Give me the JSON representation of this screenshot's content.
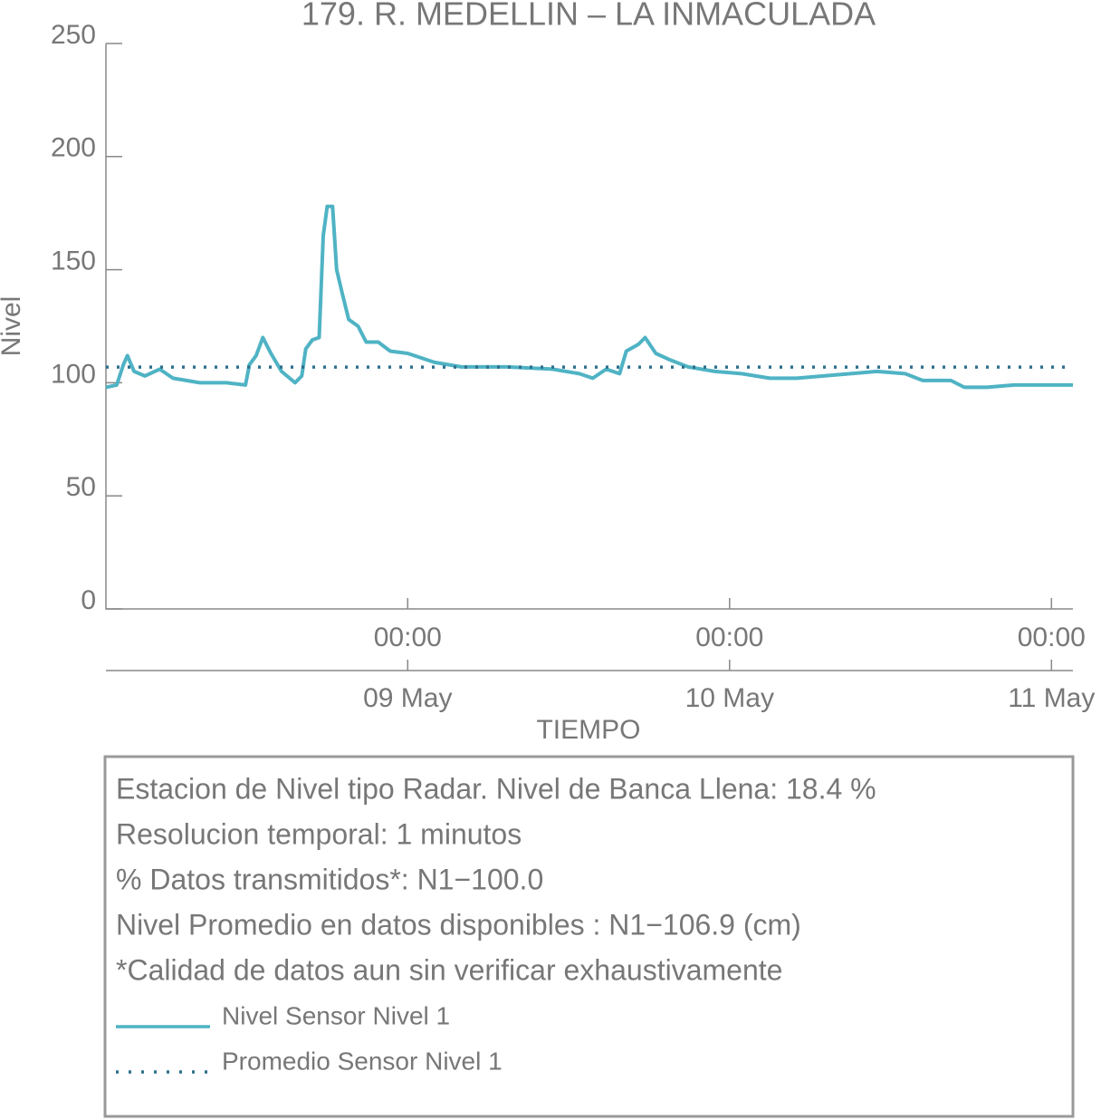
{
  "chart_data": {
    "type": "line",
    "title": "179. R. MEDELLIN – LA INMACULADA",
    "xlabel": "TIEMPO",
    "ylabel": "Nivel",
    "ylim": [
      0,
      250
    ],
    "yticks": [
      0,
      50,
      100,
      150,
      200,
      250
    ],
    "xlim": [
      "08 May 01:30",
      "11 May 01:36"
    ],
    "xticks": [
      {
        "value": "09 May 00:00",
        "label": "00:00"
      },
      {
        "value": "10 May 00:00",
        "label": "00:00"
      },
      {
        "value": "11 May 00:00",
        "label": "00:00"
      }
    ],
    "x_date_labels": [
      "09 May",
      "10 May",
      "11 May"
    ],
    "series": [
      {
        "name": "Nivel Sensor Nivel 1",
        "color": "#4fb3c4",
        "x": [
          "08 May 01:30",
          "08 May 02:18",
          "08 May 02:48",
          "08 May 03:06",
          "08 May 03:36",
          "08 May 04:24",
          "08 May 05:30",
          "08 May 06:30",
          "08 May 08:30",
          "08 May 10:30",
          "08 May 11:54",
          "08 May 12:12",
          "08 May 12:42",
          "08 May 13:12",
          "08 May 13:48",
          "08 May 14:36",
          "08 May 15:36",
          "08 May 16:06",
          "08 May 16:24",
          "08 May 16:54",
          "08 May 17:24",
          "08 May 17:42",
          "08 May 18:00",
          "08 May 18:24",
          "08 May 18:42",
          "08 May 19:06",
          "08 May 19:36",
          "08 May 20:18",
          "08 May 20:54",
          "08 May 21:48",
          "08 May 22:42",
          "09 May 00:00",
          "09 May 02:00",
          "09 May 04:00",
          "09 May 07:24",
          "09 May 10:48",
          "09 May 12:48",
          "09 May 13:48",
          "09 May 14:48",
          "09 May 15:48",
          "09 May 16:18",
          "09 May 17:12",
          "09 May 17:42",
          "09 May 18:30",
          "09 May 19:36",
          "09 May 20:54",
          "09 May 22:54",
          "10 May 00:54",
          "10 May 03:00",
          "10 May 05:00",
          "10 May 07:00",
          "10 May 09:00",
          "10 May 11:00",
          "10 May 13:06",
          "10 May 14:24",
          "10 May 16:30",
          "10 May 17:30",
          "10 May 19:12",
          "10 May 21:12",
          "10 May 23:12",
          "11 May 01:36"
        ],
        "values": [
          98,
          99,
          108,
          112,
          105,
          103,
          106,
          102,
          100,
          100,
          99,
          108,
          112,
          120,
          113,
          105,
          100,
          103,
          115,
          119,
          120,
          165,
          178,
          178,
          150,
          140,
          128,
          125,
          118,
          118,
          114,
          113,
          109,
          107,
          107,
          106,
          104,
          102,
          106,
          104,
          114,
          117,
          120,
          113,
          110,
          107,
          105,
          104,
          102,
          102,
          103,
          104,
          105,
          104,
          101,
          101,
          98,
          98,
          99,
          99,
          99
        ]
      },
      {
        "name": "Promedio Sensor Nivel 1",
        "color": "#2e6f8e",
        "style": "dotted",
        "value": 106.9
      }
    ],
    "info_lines": [
      "Estacion de Nivel tipo Radar. Nivel de Banca Llena: 18.4 %",
      "Resolucion temporal: 1 minutos",
      "% Datos transmitidos*: N1−100.0",
      "Nivel Promedio en datos disponibles : N1−106.9 (cm)",
      "*Calidad de datos aun sin verificar exhaustivamente"
    ]
  }
}
